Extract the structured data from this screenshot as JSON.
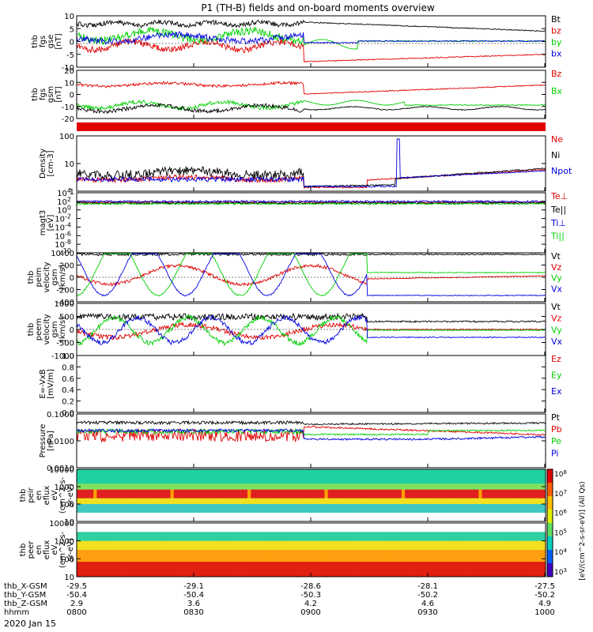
{
  "title": "P1 (TH-B) fields and on-board moments overview",
  "colors": {
    "black": "#000000",
    "red": "#e00000",
    "green": "#00d000",
    "blue": "#0000e0"
  },
  "chart_data": [
    {
      "type": "line",
      "ylabel": [
        "thb",
        "fgs",
        "gse",
        "[nT]"
      ],
      "yticks": [
        "10",
        "5",
        "0",
        "-5",
        "-10"
      ],
      "ylim": [
        -10,
        10
      ],
      "series": [
        {
          "name": "Bt",
          "color": "black"
        },
        {
          "name": "bz",
          "color": "red"
        },
        {
          "name": "by",
          "color": "green"
        },
        {
          "name": "bx",
          "color": "blue"
        }
      ]
    },
    {
      "type": "line",
      "ylabel": [
        "thb",
        "fgs",
        "gsm",
        "[nT]"
      ],
      "yticks": [
        "20",
        "10",
        "0",
        "-10",
        "-20"
      ],
      "ylim": [
        -20,
        20
      ],
      "series": [
        {
          "name": "Bz",
          "color": "red"
        },
        {
          "name": "Bx",
          "color": "green"
        }
      ]
    },
    {
      "type": "line",
      "ylabel": [
        "Density",
        "[cm-3]"
      ],
      "yticks": [
        "100",
        "10",
        "1"
      ],
      "log": true,
      "series": [
        {
          "name": "Ne",
          "color": "red"
        },
        {
          "name": "Ni",
          "color": "black"
        },
        {
          "name": "Npot",
          "color": "blue"
        }
      ]
    },
    {
      "type": "line",
      "ylabel": [
        "magt3",
        "[eV]"
      ],
      "yticks": [
        "10^4",
        "10^2",
        "10^0",
        "10^-2",
        "10^-4",
        "10^-6",
        "10^-8",
        "10^-10"
      ],
      "log": true,
      "series": [
        {
          "name": "Te⊥",
          "color": "red"
        },
        {
          "name": "Te||",
          "color": "black"
        },
        {
          "name": "Ti⊥",
          "color": "blue"
        },
        {
          "name": "Ti||",
          "color": "green"
        }
      ]
    },
    {
      "type": "line",
      "ylabel": [
        "thb",
        "peim",
        "velocity",
        "gsm",
        "[km/s]"
      ],
      "yticks": [
        "400",
        "200",
        "0",
        "-200",
        "-400"
      ],
      "ylim": [
        -400,
        400
      ],
      "series": [
        {
          "name": "Vt",
          "color": "black"
        },
        {
          "name": "Vz",
          "color": "red"
        },
        {
          "name": "Vy",
          "color": "green"
        },
        {
          "name": "Vx",
          "color": "blue"
        }
      ]
    },
    {
      "type": "line",
      "ylabel": [
        "thb",
        "peem",
        "velocity",
        "gsm",
        "[km/s]"
      ],
      "yticks": [
        "1000",
        "500",
        "0",
        "-500",
        "-1000"
      ],
      "ylim": [
        -1000,
        1000
      ],
      "series": [
        {
          "name": "Vt",
          "color": "black"
        },
        {
          "name": "Vz",
          "color": "red"
        },
        {
          "name": "Vy",
          "color": "green"
        },
        {
          "name": "Vx",
          "color": "blue"
        }
      ]
    },
    {
      "type": "line",
      "ylabel": [
        "E=-VxB",
        "[mV/m]"
      ],
      "yticks": [
        "1.0",
        "0.8",
        "0.6",
        "0.4",
        "0.2",
        "0.0"
      ],
      "ylim": [
        0,
        1
      ],
      "series": [
        {
          "name": "Ez",
          "color": "red"
        },
        {
          "name": "Ey",
          "color": "green"
        },
        {
          "name": "Ex",
          "color": "blue"
        }
      ]
    },
    {
      "type": "line",
      "ylabel": [
        "Pressure",
        "[nPa]"
      ],
      "yticks": [
        "0.1000",
        "0.0100",
        "0.0010"
      ],
      "log": true,
      "series": [
        {
          "name": "Pt",
          "color": "black"
        },
        {
          "name": "Pb",
          "color": "red"
        },
        {
          "name": "Pe",
          "color": "green"
        },
        {
          "name": "Pi",
          "color": "blue"
        }
      ]
    },
    {
      "type": "heatmap",
      "ylabel": [
        "thb",
        "peir",
        "en",
        "eflux",
        "eV",
        "(cm^2-s-",
        "sr-eV)"
      ],
      "yticks": [
        "10000",
        "1000",
        "100",
        "10"
      ],
      "log": true
    },
    {
      "type": "heatmap",
      "ylabel": [
        "thb",
        "peer",
        "en",
        "eflux",
        "eV",
        "(cm^2-s-",
        "sr-eV)"
      ],
      "yticks": [
        "10000",
        "1000",
        "100",
        "10"
      ],
      "log": true
    }
  ],
  "colorbar": {
    "ticks": [
      "10^8",
      "10^7",
      "10^6",
      "10^5",
      "10^4",
      "10^3"
    ],
    "label": "[eV/(cm^2-s-sr-eV)] (All Qs)"
  },
  "xaxis": {
    "rows": [
      {
        "name": "thb_X-GSM",
        "values": [
          "-29.5",
          "-29.1",
          "-28.6",
          "-28.1",
          "-27.5"
        ]
      },
      {
        "name": "thb_Y-GSM",
        "values": [
          "-50.4",
          "-50.4",
          "-50.3",
          "-50.2",
          "-50.2"
        ]
      },
      {
        "name": "thb_Z-GSM",
        "values": [
          "2.9",
          "3.6",
          "4.2",
          "4.6",
          "4.9"
        ]
      },
      {
        "name": "hhmm",
        "values": [
          "0800",
          "0830",
          "0900",
          "0930",
          "1000"
        ]
      }
    ],
    "date": "2020 Jan 15"
  }
}
